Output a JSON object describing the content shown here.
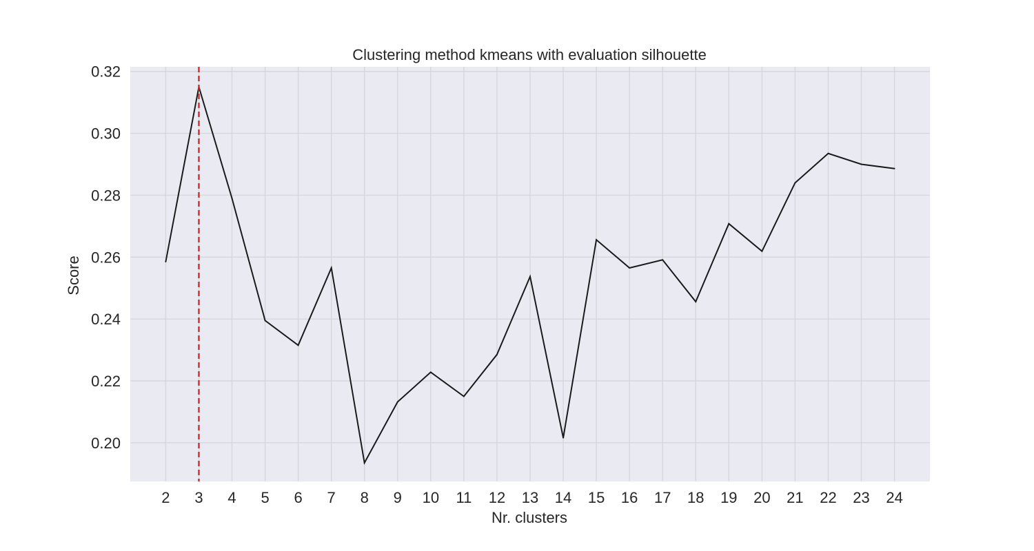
{
  "chart_data": {
    "type": "line",
    "title": "Clustering method kmeans with evaluation silhouette",
    "xlabel": "Nr. clusters",
    "ylabel": "Score",
    "x": [
      2,
      3,
      4,
      5,
      6,
      7,
      8,
      9,
      10,
      11,
      12,
      13,
      14,
      15,
      16,
      17,
      18,
      19,
      20,
      21,
      22,
      23,
      24
    ],
    "series": [
      {
        "name": "silhouette",
        "color": "#1a1a1a",
        "values": [
          0.2585,
          0.315,
          0.279,
          0.2395,
          0.2315,
          0.2565,
          0.1935,
          0.2132,
          0.2228,
          0.215,
          0.2285,
          0.2537,
          0.2016,
          0.2656,
          0.2565,
          0.2591,
          0.2456,
          0.2708,
          0.2619,
          0.284,
          0.2935,
          0.29,
          0.2886
        ]
      }
    ],
    "optimal_line": {
      "x": 3,
      "color": "#d62728",
      "style": "dashed"
    },
    "xticks": [
      "2",
      "3",
      "4",
      "5",
      "6",
      "7",
      "8",
      "9",
      "10",
      "11",
      "12",
      "13",
      "14",
      "15",
      "16",
      "17",
      "18",
      "19",
      "20",
      "21",
      "22",
      "23",
      "24"
    ],
    "yticks": [
      "0.20",
      "0.22",
      "0.24",
      "0.26",
      "0.28",
      "0.30",
      "0.32"
    ],
    "ytick_values": [
      0.2,
      0.22,
      0.24,
      0.26,
      0.28,
      0.3,
      0.32
    ],
    "xlim": [
      0.93,
      25.07
    ],
    "ylim": [
      0.1875,
      0.3215
    ],
    "grid": true,
    "background": "#eaeaf2"
  }
}
